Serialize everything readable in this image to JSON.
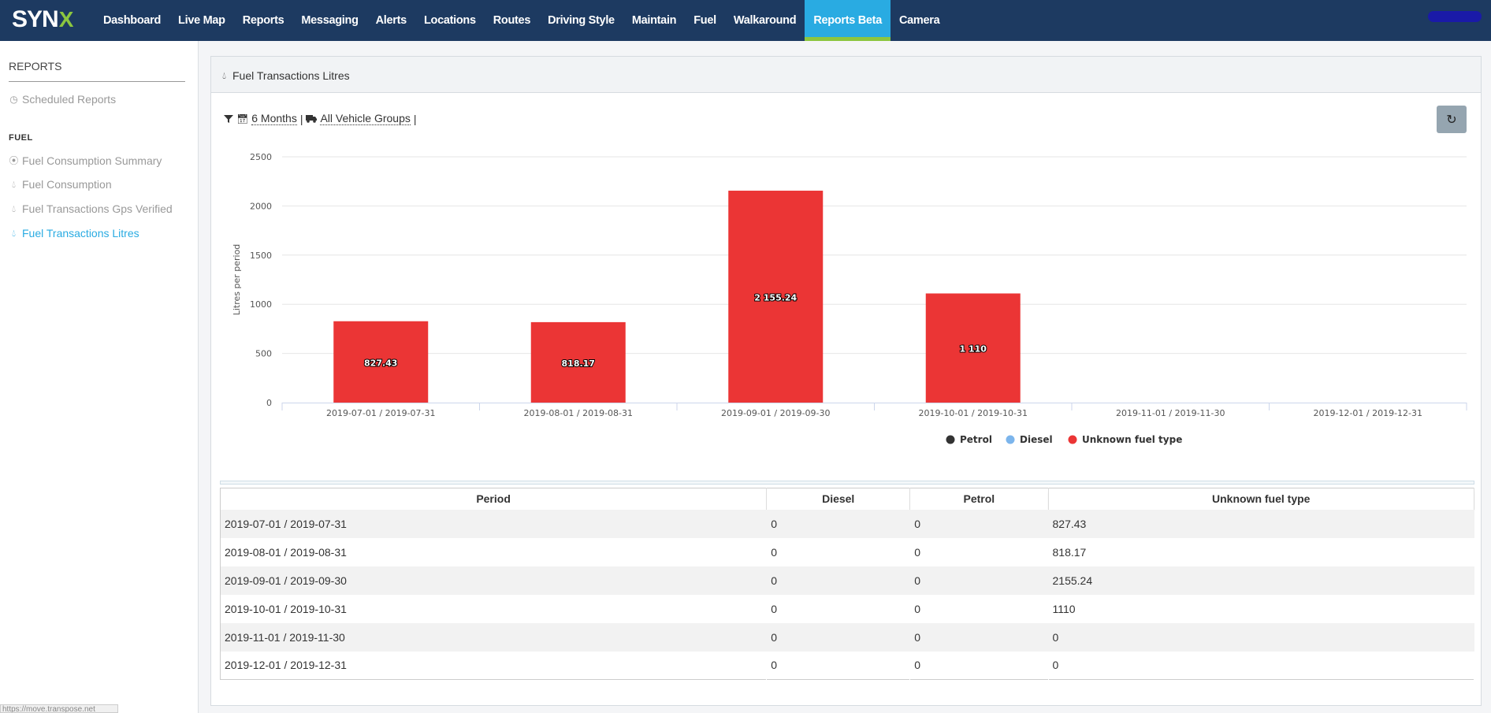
{
  "brand": {
    "logo_text": "SYN",
    "logo_x": "X"
  },
  "nav": {
    "items": [
      "Dashboard",
      "Live Map",
      "Reports",
      "Messaging",
      "Alerts",
      "Locations",
      "Routes",
      "Driving Style",
      "Maintain",
      "Fuel",
      "Walkaround",
      "Reports Beta",
      "Camera"
    ],
    "active": "Reports Beta"
  },
  "sidebar": {
    "title": "REPORTS",
    "scheduled": "Scheduled Reports",
    "section": "FUEL",
    "items": [
      {
        "label": "Fuel Consumption Summary",
        "icon": "dashboard-icon"
      },
      {
        "label": "Fuel Consumption",
        "icon": "droplet-icon"
      },
      {
        "label": "Fuel Transactions Gps Verified",
        "icon": "droplet-icon"
      },
      {
        "label": "Fuel Transactions Litres",
        "icon": "droplet-icon",
        "active": true
      }
    ]
  },
  "panel": {
    "title": "Fuel Transactions Litres",
    "filters": {
      "period": "6 Months",
      "group": "All Vehicle Groups",
      "sep": "|"
    }
  },
  "colors": {
    "nav_bg": "#1d3a61",
    "active_tab": "#29abe2",
    "accent_green": "#8cc63f",
    "bar": "#eb3535",
    "petrol": "#333333",
    "diesel": "#7cb5ec"
  },
  "status_url": "https://move.transpose.net",
  "chart_data": {
    "type": "bar",
    "ylabel": "Litres per period",
    "ylim": [
      0,
      2500
    ],
    "yticks": [
      0,
      500,
      1000,
      1500,
      2000,
      2500
    ],
    "categories": [
      "2019-07-01 / 2019-07-31",
      "2019-08-01 / 2019-08-31",
      "2019-09-01 / 2019-09-30",
      "2019-10-01 / 2019-10-31",
      "2019-11-01 / 2019-11-30",
      "2019-12-01 / 2019-12-31"
    ],
    "series": [
      {
        "name": "Petrol",
        "color": "#333333",
        "values": [
          0,
          0,
          0,
          0,
          0,
          0
        ]
      },
      {
        "name": "Diesel",
        "color": "#7cb5ec",
        "values": [
          0,
          0,
          0,
          0,
          0,
          0
        ]
      },
      {
        "name": "Unknown fuel type",
        "color": "#eb3535",
        "values": [
          827.43,
          818.17,
          2155.24,
          1110,
          0,
          0
        ]
      }
    ],
    "data_labels": [
      "827.43",
      "818.17",
      "2 155.24",
      "1 110",
      "",
      ""
    ],
    "legend_position": "bottom-center",
    "grid": true
  },
  "table": {
    "headers": [
      "Period",
      "Diesel",
      "Petrol",
      "Unknown fuel type"
    ],
    "rows": [
      [
        "2019-07-01 / 2019-07-31",
        "0",
        "0",
        "827.43"
      ],
      [
        "2019-08-01 / 2019-08-31",
        "0",
        "0",
        "818.17"
      ],
      [
        "2019-09-01 / 2019-09-30",
        "0",
        "0",
        "2155.24"
      ],
      [
        "2019-10-01 / 2019-10-31",
        "0",
        "0",
        "1110"
      ],
      [
        "2019-11-01 / 2019-11-30",
        "0",
        "0",
        "0"
      ],
      [
        "2019-12-01 / 2019-12-31",
        "0",
        "0",
        "0"
      ]
    ]
  }
}
